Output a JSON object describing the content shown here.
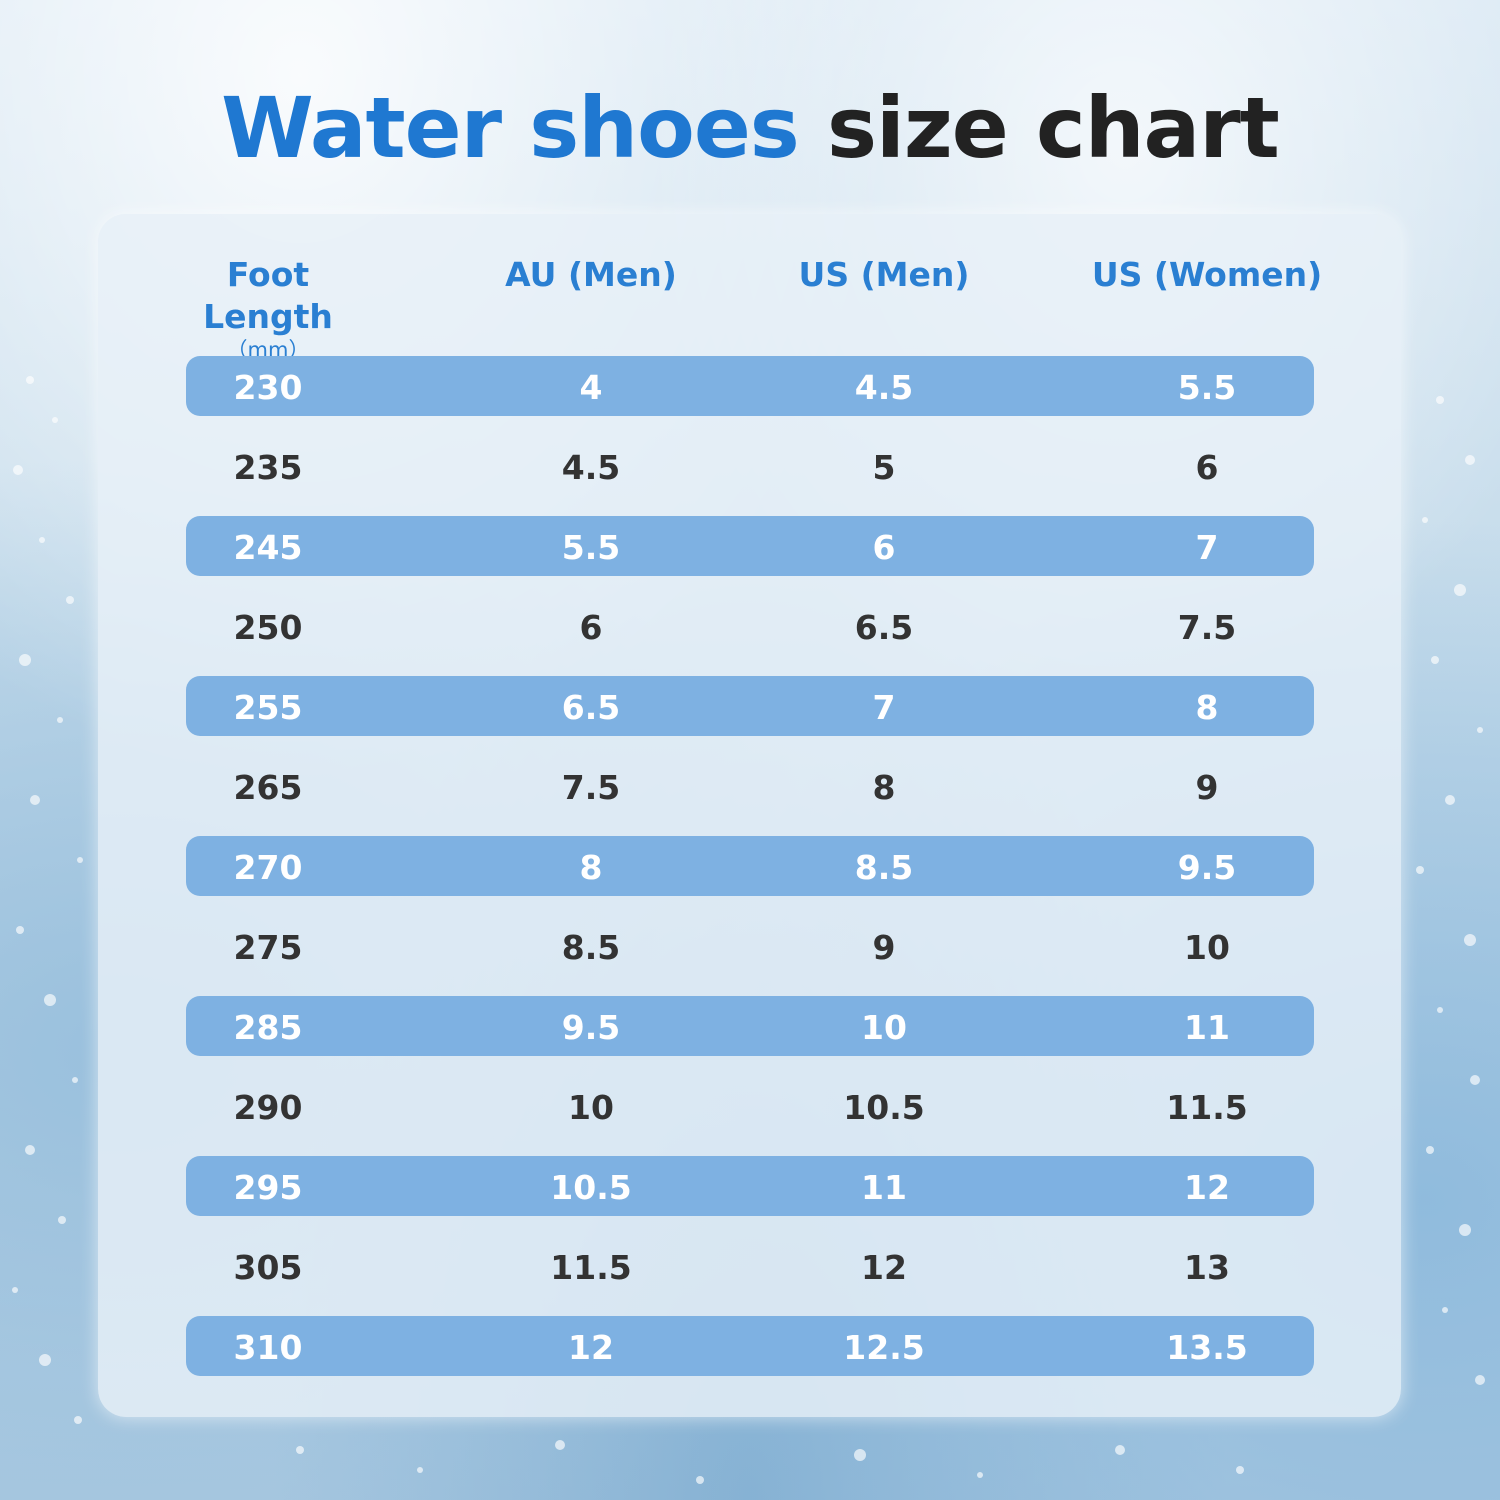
{
  "title": {
    "part1": "Water shoes",
    "part2": "size chart"
  },
  "colors": {
    "title_blue": "#1f78d1",
    "title_dark": "#222222",
    "header_blue": "#2a7fd2",
    "row_highlight": "#7eb1e2"
  },
  "table": {
    "headers": [
      {
        "label": "Foot Length",
        "sub": "（mm）"
      },
      {
        "label": "AU (Men)"
      },
      {
        "label": "US (Men)"
      },
      {
        "label": "US (Women)"
      }
    ],
    "rows": [
      [
        "230",
        "4",
        "4.5",
        "5.5"
      ],
      [
        "235",
        "4.5",
        "5",
        "6"
      ],
      [
        "245",
        "5.5",
        "6",
        "7"
      ],
      [
        "250",
        "6",
        "6.5",
        "7.5"
      ],
      [
        "255",
        "6.5",
        "7",
        "8"
      ],
      [
        "265",
        "7.5",
        "8",
        "9"
      ],
      [
        "270",
        "8",
        "8.5",
        "9.5"
      ],
      [
        "275",
        "8.5",
        "9",
        "10"
      ],
      [
        "285",
        "9.5",
        "10",
        "11"
      ],
      [
        "290",
        "10",
        "10.5",
        "11.5"
      ],
      [
        "295",
        "10.5",
        "11",
        "12"
      ],
      [
        "305",
        "11.5",
        "12",
        "13"
      ],
      [
        "310",
        "12",
        "12.5",
        "13.5"
      ]
    ]
  }
}
